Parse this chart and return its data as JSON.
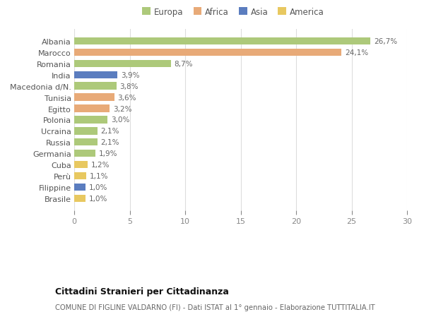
{
  "categories": [
    "Albania",
    "Marocco",
    "Romania",
    "India",
    "Macedonia d/N.",
    "Tunisia",
    "Egitto",
    "Polonia",
    "Ucraina",
    "Russia",
    "Germania",
    "Cuba",
    "Perù",
    "Filippine",
    "Brasile"
  ],
  "values": [
    26.7,
    24.1,
    8.7,
    3.9,
    3.8,
    3.6,
    3.2,
    3.0,
    2.1,
    2.1,
    1.9,
    1.2,
    1.1,
    1.0,
    1.0
  ],
  "labels": [
    "26,7%",
    "24,1%",
    "8,7%",
    "3,9%",
    "3,8%",
    "3,6%",
    "3,2%",
    "3,0%",
    "2,1%",
    "2,1%",
    "1,9%",
    "1,2%",
    "1,1%",
    "1,0%",
    "1,0%"
  ],
  "continent": [
    "Europa",
    "Africa",
    "Europa",
    "Asia",
    "Europa",
    "Africa",
    "Africa",
    "Europa",
    "Europa",
    "Europa",
    "Europa",
    "America",
    "America",
    "Asia",
    "America"
  ],
  "colors": {
    "Europa": "#adc97a",
    "Africa": "#e8aa78",
    "Asia": "#5b7dbf",
    "America": "#e8c860"
  },
  "xlim": [
    0,
    30
  ],
  "xticks": [
    0,
    5,
    10,
    15,
    20,
    25,
    30
  ],
  "title": "Cittadini Stranieri per Cittadinanza",
  "subtitle": "COMUNE DI FIGLINE VALDARNO (FI) - Dati ISTAT al 1° gennaio - Elaborazione TUTTITALIA.IT",
  "bg_color": "#ffffff",
  "grid_color": "#dddddd",
  "bar_height": 0.65,
  "bar_alpha": 1.0,
  "legend_order": [
    "Europa",
    "Africa",
    "Asia",
    "America"
  ]
}
